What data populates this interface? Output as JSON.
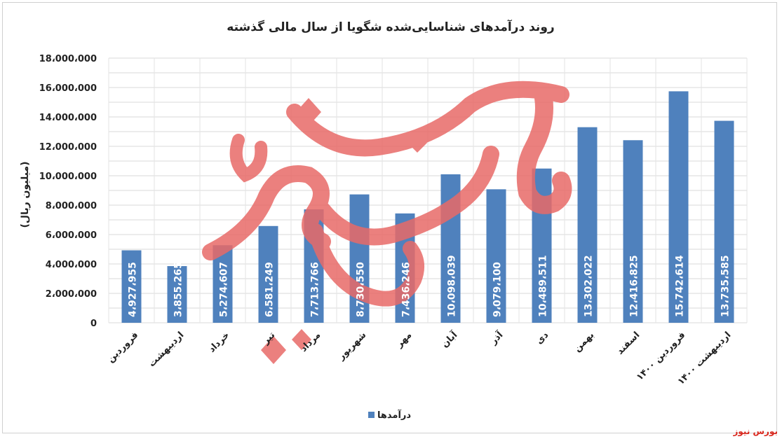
{
  "chart_data": {
    "type": "bar",
    "title": "روند درآمدهای شناسایی‌شده شگویا از سال مالی گذشته",
    "ylabel": "(میلیون ریال)",
    "xlabel": "",
    "ylim": [
      0,
      18000000
    ],
    "yticks": [
      {
        "value": 0,
        "label": "0"
      },
      {
        "value": 2000000,
        "label": "2،000،000"
      },
      {
        "value": 4000000,
        "label": "4،000،000"
      },
      {
        "value": 6000000,
        "label": "6،000،000"
      },
      {
        "value": 8000000,
        "label": "8،000،000"
      },
      {
        "value": 10000000,
        "label": "10،000،000"
      },
      {
        "value": 12000000,
        "label": "12،000،000"
      },
      {
        "value": 14000000,
        "label": "14،000،000"
      },
      {
        "value": 16000000,
        "label": "16،000،000"
      },
      {
        "value": 18000000,
        "label": "18،000،000"
      }
    ],
    "categories": [
      "فروردین",
      "اردیبهشت",
      "خرداد",
      "تیر",
      "مرداد",
      "شهریور",
      "مهر",
      "آبان",
      "آذر",
      "دی",
      "بهمن",
      "اسفند",
      "فروردین ۱۴۰۰",
      "اردیبهشت ۱۴۰۰"
    ],
    "values": [
      4927955,
      3855265,
      5274607,
      6581249,
      7713766,
      8730550,
      7436246,
      10098039,
      9079100,
      10489511,
      13302022,
      12416825,
      15742614,
      13735585
    ],
    "data_labels": [
      "4،927،955",
      "3،855،265",
      "5،274،607",
      "6،581،249",
      "7،713،766",
      "8،730،550",
      "7،436،246",
      "10،098،039",
      "9،079،100",
      "10،489،511",
      "13،302،022",
      "12،416،825",
      "15،742،614",
      "13،735،585"
    ],
    "series": [
      {
        "name": "درآمدها",
        "color": "#4f81bd"
      }
    ],
    "grid": true,
    "legend": "bottom-center"
  },
  "watermark_text": "بورس نیوز",
  "source_label": "بورس نیوز"
}
